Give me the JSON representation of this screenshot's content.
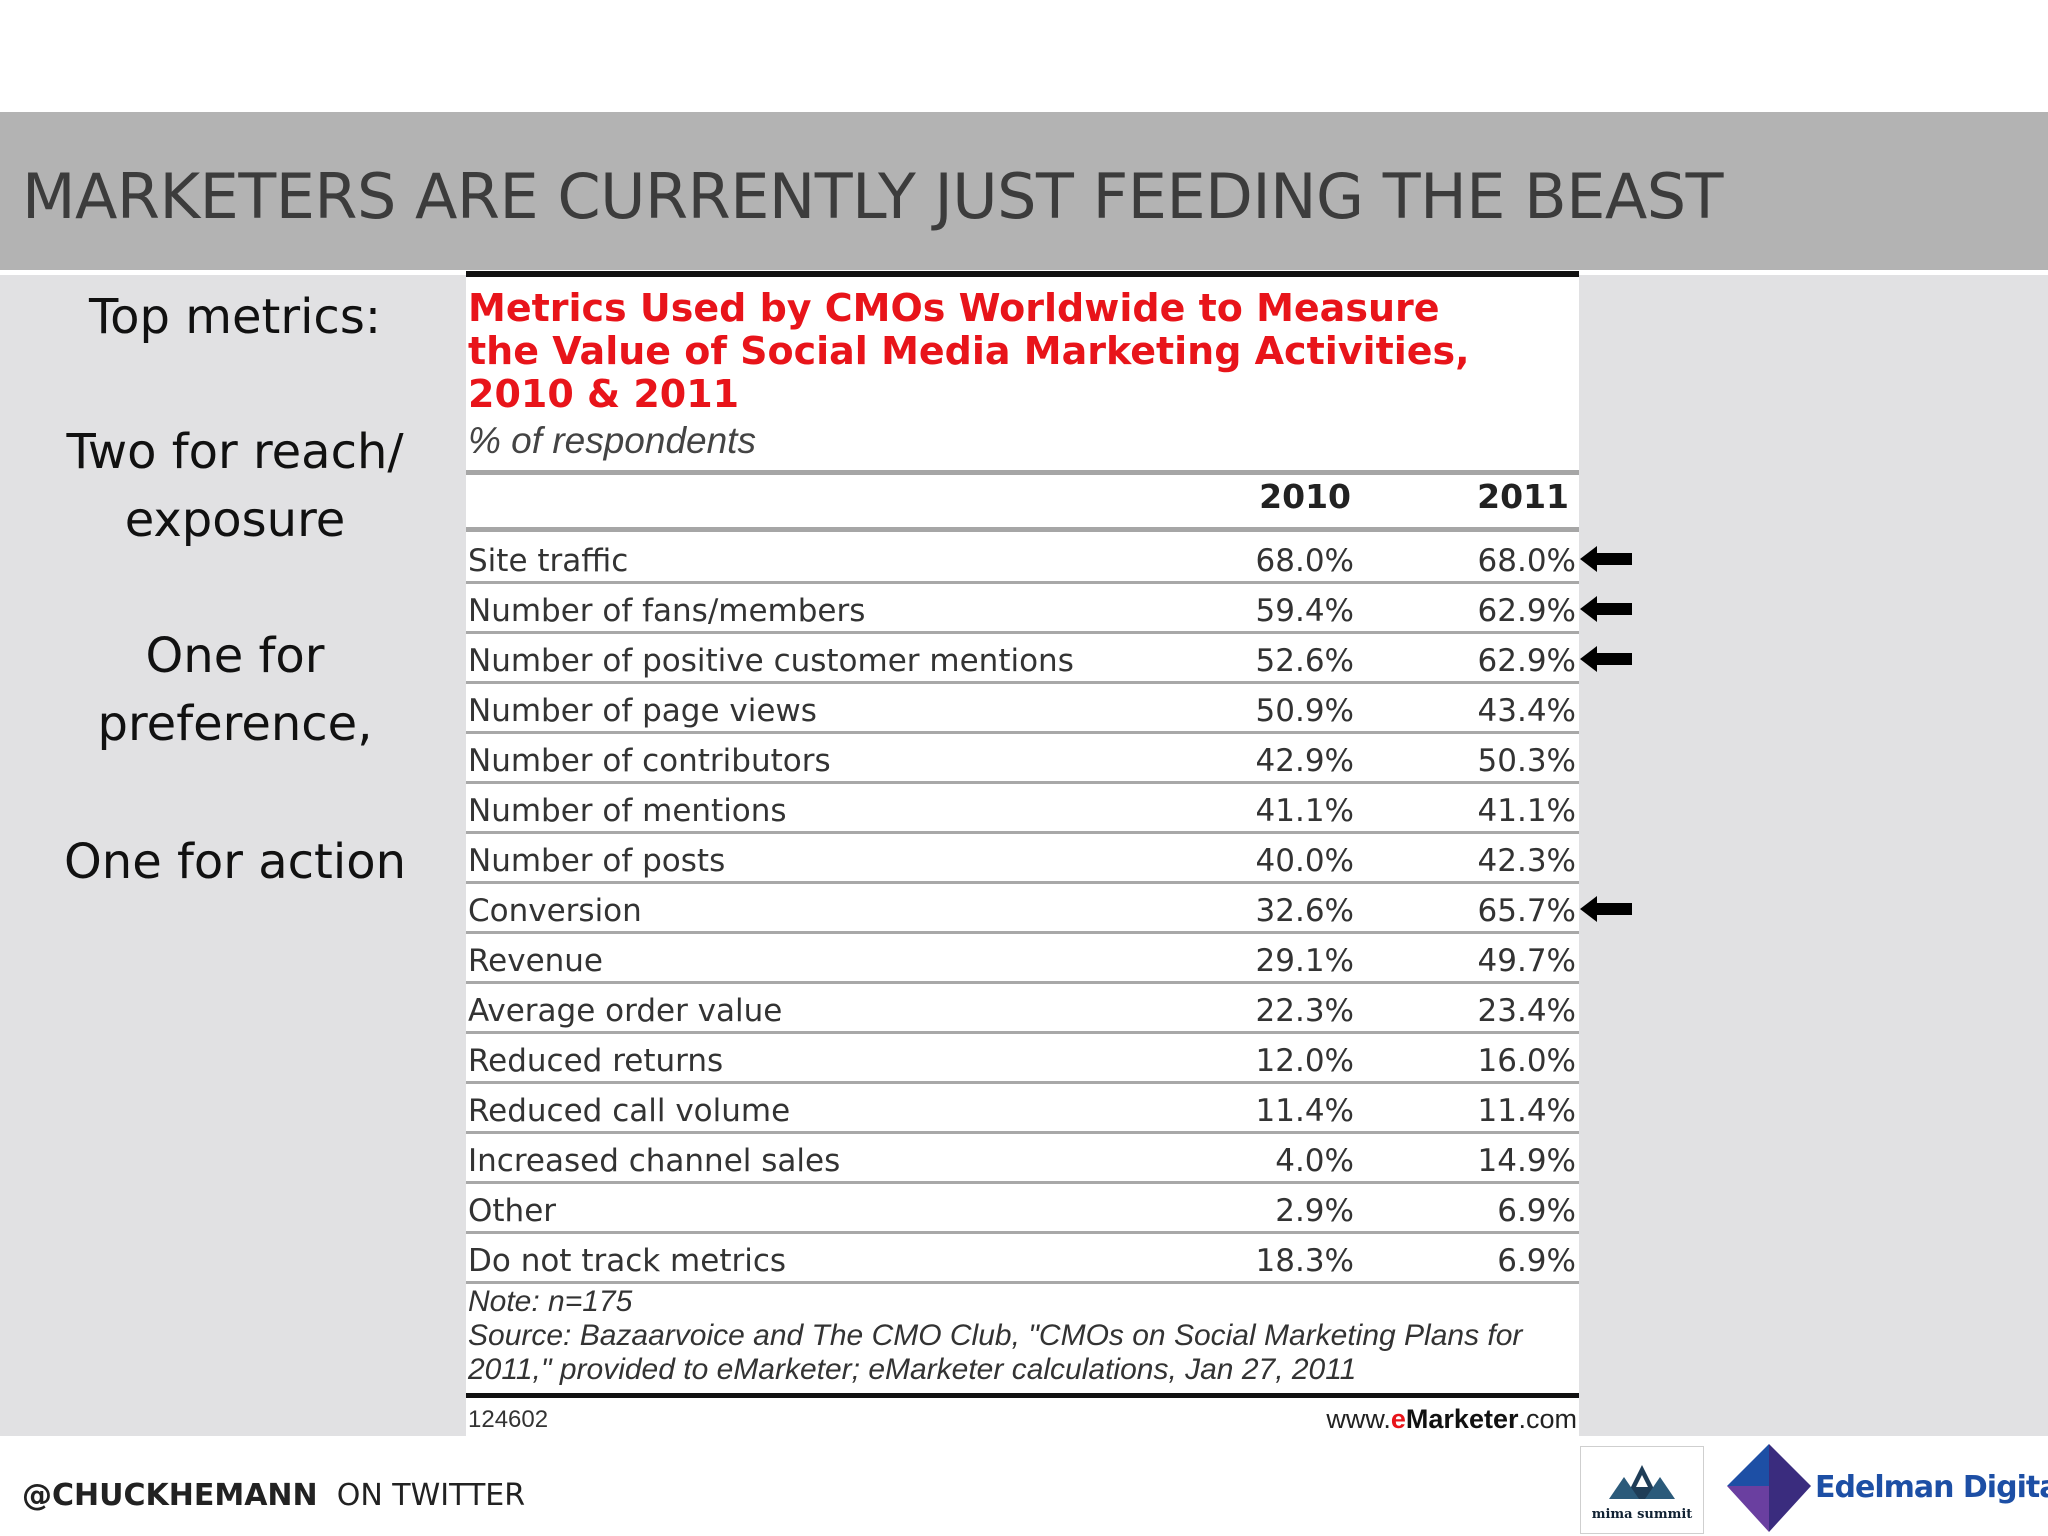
{
  "slide": {
    "title": "MARKETERS ARE CURRENTLY JUST FEEDING THE BEAST",
    "left_panel": [
      "Top metrics:",
      "Two for reach/",
      "exposure",
      "One for",
      "preference,",
      "One for action"
    ]
  },
  "table": {
    "title": "Metrics Used by CMOs Worldwide to Measure the Value of Social Media Marketing Activities, 2010 & 2011",
    "subtitle": "% of respondents",
    "columns": [
      "2010",
      "2011"
    ],
    "rows": [
      {
        "label": "Site traffic",
        "v2010": "68.0%",
        "v2011": "68.0%",
        "arrow": true
      },
      {
        "label": "Number of fans/members",
        "v2010": "59.4%",
        "v2011": "62.9%",
        "arrow": true
      },
      {
        "label": "Number of positive customer mentions",
        "v2010": "52.6%",
        "v2011": "62.9%",
        "arrow": true
      },
      {
        "label": "Number of page views",
        "v2010": "50.9%",
        "v2011": "43.4%",
        "arrow": false
      },
      {
        "label": "Number of contributors",
        "v2010": "42.9%",
        "v2011": "50.3%",
        "arrow": false
      },
      {
        "label": "Number of mentions",
        "v2010": "41.1%",
        "v2011": "41.1%",
        "arrow": false
      },
      {
        "label": "Number of posts",
        "v2010": "40.0%",
        "v2011": "42.3%",
        "arrow": false
      },
      {
        "label": "Conversion",
        "v2010": "32.6%",
        "v2011": "65.7%",
        "arrow": true
      },
      {
        "label": "Revenue",
        "v2010": "29.1%",
        "v2011": "49.7%",
        "arrow": false
      },
      {
        "label": "Average order value",
        "v2010": "22.3%",
        "v2011": "23.4%",
        "arrow": false
      },
      {
        "label": "Reduced returns",
        "v2010": "12.0%",
        "v2011": "16.0%",
        "arrow": false
      },
      {
        "label": "Reduced call volume",
        "v2010": "11.4%",
        "v2011": "11.4%",
        "arrow": false
      },
      {
        "label": "Increased channel sales",
        "v2010": "4.0%",
        "v2011": "14.9%",
        "arrow": false
      },
      {
        "label": "Other",
        "v2010": "2.9%",
        "v2011": "6.9%",
        "arrow": false
      },
      {
        "label": "Do not track metrics",
        "v2010": "18.3%",
        "v2011": "6.9%",
        "arrow": false
      }
    ],
    "note": "Note: n=175",
    "source": "Source: Bazaarvoice and The CMO Club, \"CMOs on Social Marketing Plans for 2011,\" provided to eMarketer; eMarketer calculations, Jan 27, 2011",
    "chart_id": "124602",
    "url_prefix": "www.",
    "url_e": "e",
    "url_brand": "Marketer",
    "url_suffix": ".com"
  },
  "footer": {
    "handle": "@CHUCKHEMANN",
    "suffix": "ON TWITTER",
    "logos": {
      "mima": "mima summit",
      "edelman": "Edelman Digital"
    }
  },
  "colors": {
    "title_band": "#b3b3b3",
    "content_band": "#e1e1e3",
    "chart_title": "#e8141a",
    "edelman_blue": "#1d4fa5"
  },
  "icons": [
    "left-arrow-icon",
    "mima-logo-icon",
    "edelman-logo-icon"
  ]
}
